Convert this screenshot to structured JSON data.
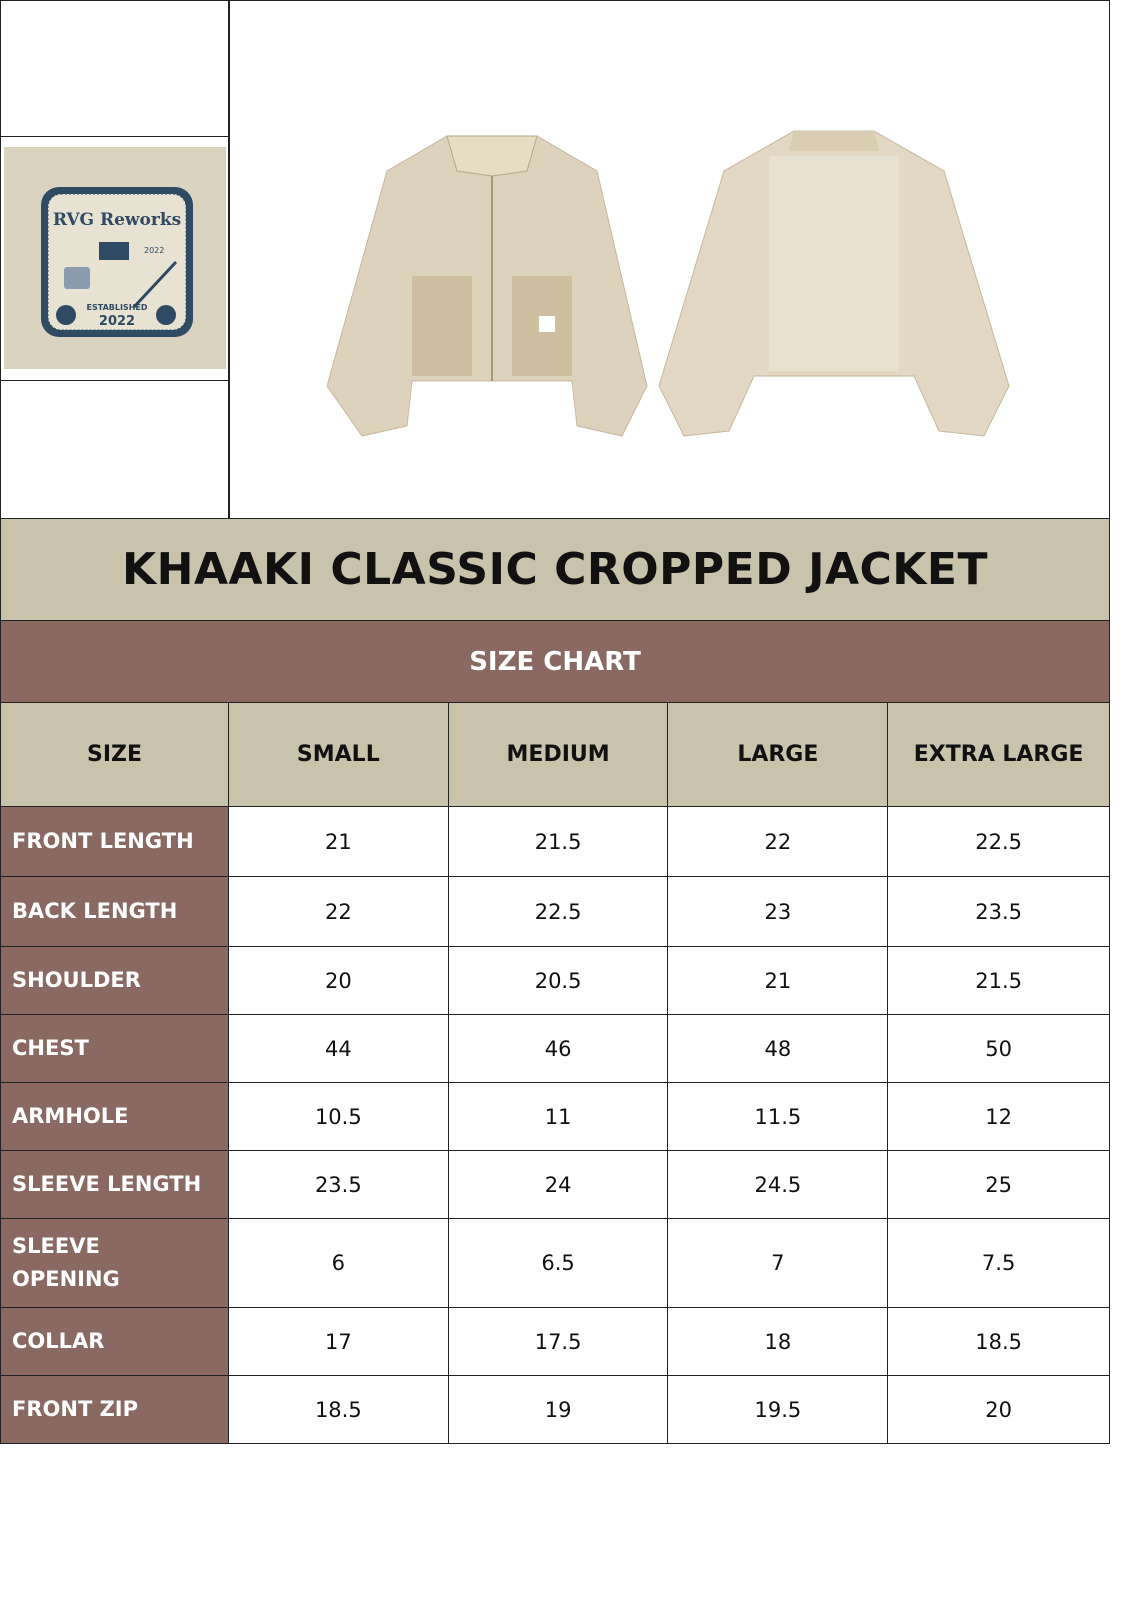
{
  "logo": {
    "brand": "RVG Reworks",
    "established": "ESTABLISHED",
    "year": "2022",
    "colors": {
      "navy": "#2f4a63",
      "cream": "#e8e2d2"
    }
  },
  "title": "KHAAKI CLASSIC CROPPED JACKET",
  "subtitle": "SIZE CHART",
  "colors": {
    "beige": "#c9c3ab",
    "brown": "#8a6962"
  },
  "table": {
    "headers": [
      "SIZE",
      "SMALL",
      "MEDIUM",
      "LARGE",
      "EXTRA LARGE"
    ],
    "rows": [
      {
        "label": "FRONT LENGTH",
        "values": [
          "21",
          "21.5",
          "22",
          "22.5"
        ]
      },
      {
        "label": "BACK LENGTH",
        "values": [
          "22",
          "22.5",
          "23",
          "23.5"
        ]
      },
      {
        "label": "SHOULDER",
        "values": [
          "20",
          "20.5",
          "21",
          "21.5"
        ]
      },
      {
        "label": "CHEST",
        "values": [
          "44",
          "46",
          "48",
          "50"
        ]
      },
      {
        "label": "ARMHOLE",
        "values": [
          "10.5",
          "11",
          "11.5",
          "12"
        ]
      },
      {
        "label": "SLEEVE LENGTH",
        "values": [
          "23.5",
          "24",
          "24.5",
          "25"
        ]
      },
      {
        "label": "SLEEVE OPENING",
        "values": [
          "6",
          "6.5",
          "7",
          "7.5"
        ]
      },
      {
        "label": "COLLAR",
        "values": [
          "17",
          "17.5",
          "18",
          "18.5"
        ]
      },
      {
        "label": "FRONT ZIP",
        "values": [
          "18.5",
          "19",
          "19.5",
          "20"
        ]
      }
    ]
  }
}
